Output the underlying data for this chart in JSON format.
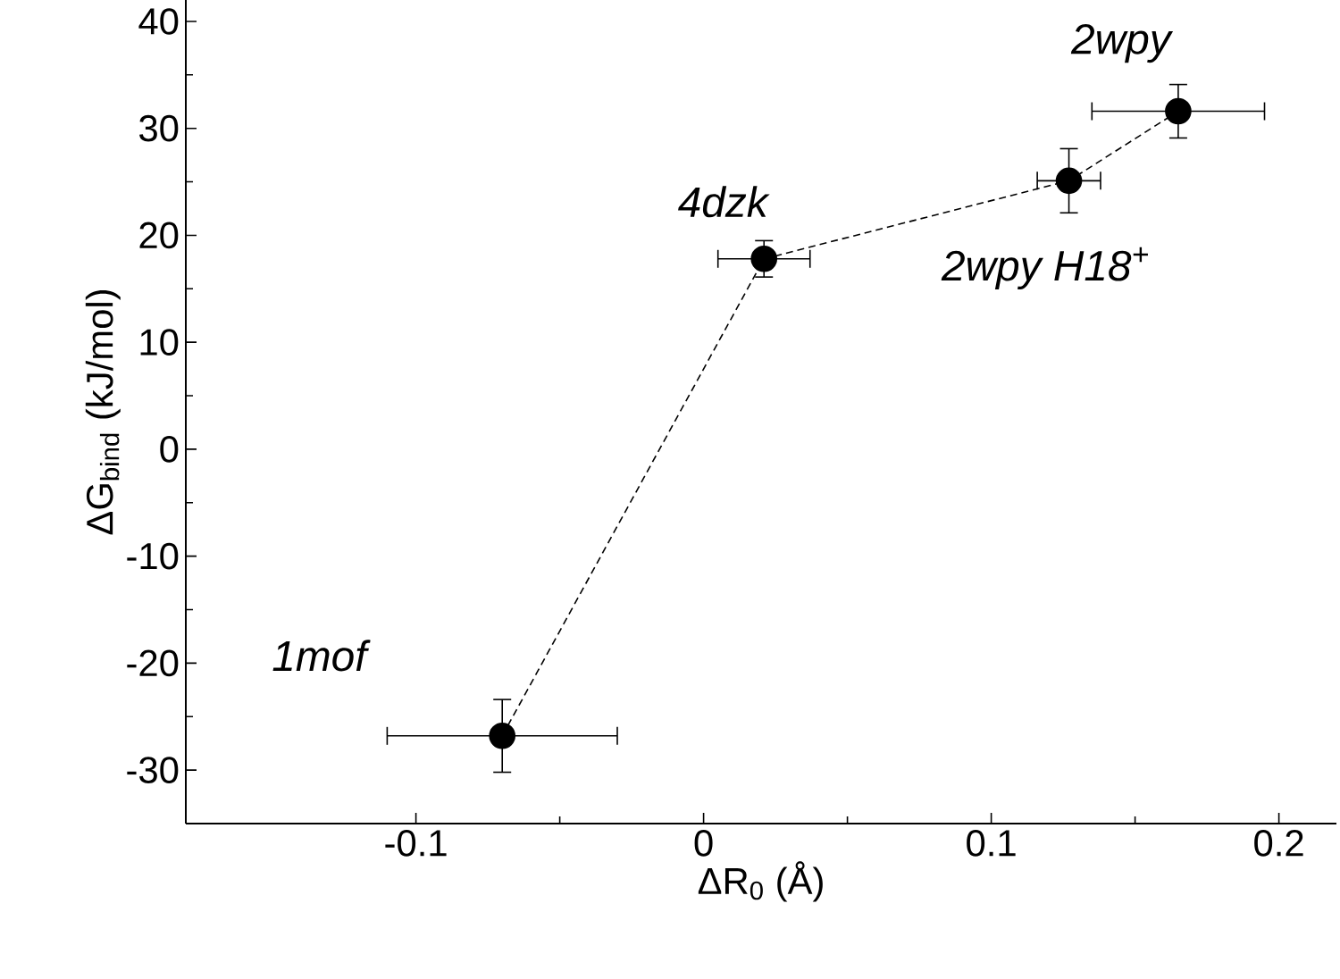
{
  "chart_data": {
    "type": "line",
    "xlabel": "ΔR$_{0}$ (Å)",
    "ylabel": "ΔG$_{bind}$ (kJ/mol)",
    "x": [
      -0.07,
      0.021,
      0.127,
      0.165
    ],
    "series": [
      {
        "color": "#000000",
        "values": [
          -26.8,
          17.8,
          25.1,
          31.6
        ],
        "errors": [
          3.4,
          1.7,
          3,
          2.5
        ],
        "xerrors": [
          0.04,
          0.016,
          0.011,
          0.03
        ]
      }
    ],
    "xlim": [
      -0.18,
      0.22
    ],
    "ylim": [
      -35,
      42
    ],
    "xticks": [
      -0.1,
      0,
      0.1,
      0.2
    ],
    "yticks": [
      -30,
      -20,
      -10,
      0,
      10,
      20,
      30,
      40
    ],
    "marker": "circle",
    "line_style": "dashed",
    "annotations": [
      "1mof",
      {
        "text": "4dzk",
        "x": 0.021,
        "y": 17.8
      },
      {
        "text": "2wpy H18$^{+}$",
        "x": 0.127,
        "y": 25.1
      },
      {
        "text": "2wpy",
        "x": 0.165,
        "y": 31.6
      }
    ]
  }
}
